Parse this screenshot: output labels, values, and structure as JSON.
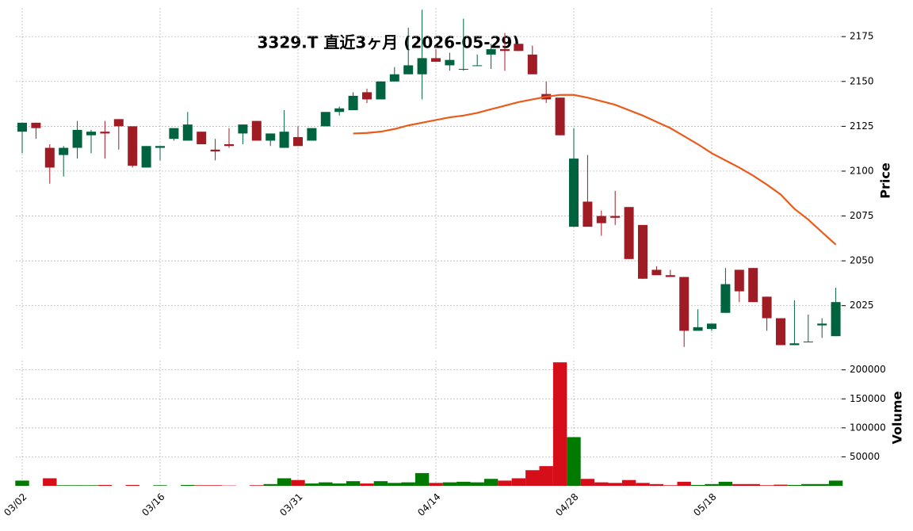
{
  "chart_data": {
    "type": "candlestick",
    "title": "3329.T 直近3ヶ月 (2026-05-29)",
    "y_label": "Price",
    "volume_label": "Volume",
    "categories": [
      "03/02",
      null,
      null,
      null,
      null,
      null,
      null,
      null,
      null,
      null,
      "03/16",
      null,
      null,
      null,
      null,
      null,
      null,
      null,
      null,
      null,
      "03/31",
      null,
      null,
      null,
      null,
      null,
      null,
      null,
      null,
      null,
      "04/14",
      null,
      null,
      null,
      null,
      null,
      null,
      null,
      null,
      null,
      "04/28",
      null,
      null,
      null,
      null,
      null,
      null,
      null,
      null,
      null,
      "05/18",
      null,
      null,
      null,
      null,
      null,
      null,
      null,
      null,
      null
    ],
    "open": [
      2122,
      2127,
      2113,
      2109,
      2113,
      2120,
      2122,
      2129,
      2125,
      2102,
      2113,
      2118,
      2117,
      2122,
      2112,
      2115,
      2121,
      2128,
      2117,
      2113,
      2119,
      2117,
      2125,
      2133,
      2134,
      2144,
      2140,
      2150,
      2154,
      2154,
      2163,
      2159,
      2157,
      2159,
      2165,
      2168,
      2171,
      2165,
      2143,
      2141,
      2069,
      2083,
      2075,
      2075,
      2080,
      2070,
      2045,
      2042,
      2041,
      2011,
      2012,
      2021,
      2045,
      2046,
      2030,
      2018,
      2003,
      2005,
      2014,
      2008
    ],
    "high": [
      2127,
      2127,
      2115,
      2114,
      2128,
      2123,
      2128,
      2129,
      2125,
      2114,
      2114,
      2124,
      2133,
      2122,
      2118,
      2124,
      2126,
      2128,
      2121,
      2134,
      2125,
      2124,
      2133,
      2136,
      2144,
      2146,
      2150,
      2158,
      2180,
      2190,
      2168,
      2166,
      2185,
      2165,
      2171,
      2177,
      2171,
      2170,
      2150,
      2141,
      2124,
      2109,
      2078,
      2089,
      2080,
      2070,
      2047,
      2045,
      2041,
      2023,
      2015,
      2046,
      2045,
      2046,
      2030,
      2018,
      2028,
      2020,
      2018,
      2035
    ],
    "low": [
      2110,
      2118,
      2093,
      2097,
      2107,
      2110,
      2107,
      2112,
      2102,
      2102,
      2106,
      2117,
      2117,
      2115,
      2106,
      2113,
      2115,
      2117,
      2114,
      2113,
      2114,
      2117,
      2125,
      2131,
      2134,
      2138,
      2140,
      2150,
      2154,
      2140,
      2161,
      2156,
      2156,
      2159,
      2157,
      2156,
      2167,
      2154,
      2138,
      2120,
      2069,
      2069,
      2064,
      2070,
      2051,
      2040,
      2042,
      2041,
      2002,
      2011,
      2011,
      2021,
      2027,
      2027,
      2011,
      2003,
      2003,
      2005,
      2007,
      2008
    ],
    "close": [
      2127,
      2124,
      2102,
      2113,
      2123,
      2122,
      2121,
      2125,
      2103,
      2114,
      2114,
      2124,
      2126,
      2115,
      2111,
      2114,
      2126,
      2117,
      2121,
      2122,
      2114,
      2124,
      2133,
      2135,
      2142,
      2140,
      2150,
      2154,
      2159,
      2163,
      2161,
      2162,
      2157,
      2159,
      2168,
      2167,
      2167,
      2154,
      2140,
      2120,
      2107,
      2069,
      2071,
      2074,
      2051,
      2040,
      2042,
      2041,
      2011,
      2013,
      2015,
      2037,
      2033,
      2027,
      2018,
      2003,
      2004,
      2005,
      2015,
      2027
    ],
    "volume": [
      9000,
      0,
      13000,
      1000,
      1000,
      1000,
      1500,
      0,
      1500,
      0,
      1000,
      0,
      1500,
      1000,
      1000,
      500,
      0,
      1000,
      3000,
      13000,
      10000,
      4000,
      6000,
      4000,
      8000,
      4000,
      8000,
      5000,
      6000,
      22000,
      5000,
      6000,
      7000,
      6000,
      12000,
      9000,
      13000,
      27000,
      34000,
      213000,
      84000,
      12000,
      6000,
      5000,
      10000,
      5000,
      3000,
      1000,
      7000,
      1500,
      3000,
      7000,
      3000,
      3000,
      1000,
      2000,
      1500,
      3000,
      3000,
      9000
    ],
    "ma": [
      null,
      null,
      null,
      null,
      null,
      null,
      null,
      null,
      null,
      null,
      null,
      null,
      null,
      null,
      null,
      null,
      null,
      null,
      null,
      null,
      null,
      null,
      null,
      null,
      2121,
      2121.3,
      2122,
      2123.5,
      2125.5,
      2127,
      2128.5,
      2130,
      2131,
      2132.5,
      2134.5,
      2136.5,
      2138.5,
      2140,
      2141.5,
      2142.5,
      2142.5,
      2141,
      2139,
      2137,
      2134,
      2131,
      2127.5,
      2124,
      2119.5,
      2115,
      2110,
      2106,
      2102,
      2097.5,
      2092.5,
      2087,
      2079,
      2073,
      2066,
      2059
    ],
    "up_color": "#006340",
    "down_color": "#a01c25",
    "volume_up_color": "#007a00",
    "volume_down_color": "#d50e1a",
    "ma_color": "#ec5a1a",
    "ylim": [
      2001,
      2191
    ],
    "yticks": [
      2025,
      2050,
      2075,
      2100,
      2125,
      2150,
      2175
    ],
    "volume_ylim": [
      0,
      216000
    ],
    "volume_yticks": [
      50000,
      100000,
      150000,
      200000
    ],
    "grid": true
  }
}
